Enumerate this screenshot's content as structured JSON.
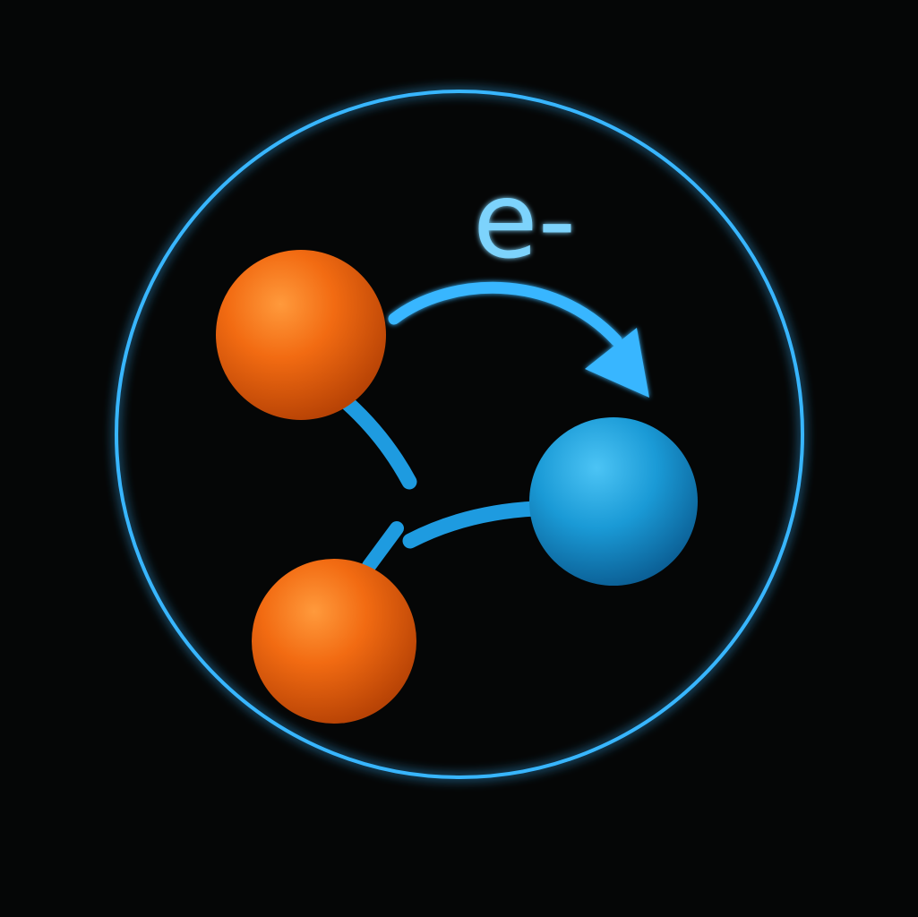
{
  "diagram": {
    "electron_symbol": "e-"
  },
  "colors": {
    "background": "#050606",
    "accent": "#38b6ff",
    "label": "#7dd3fc",
    "bond": "#1e9be0",
    "orange_atom": "#f26b12",
    "blue_atom": "#1a9ad6"
  },
  "icons": {
    "transfer_arrow": "curved-arrow-icon"
  }
}
